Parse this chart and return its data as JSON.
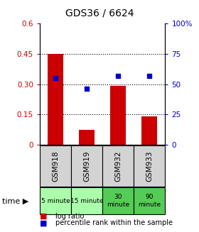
{
  "title": "GDS36 / 6624",
  "categories": [
    "GSM918",
    "GSM919",
    "GSM932",
    "GSM933"
  ],
  "time_labels": [
    "5 minute",
    "15 minute",
    "30\nminute",
    "90\nminute"
  ],
  "time_bg_colors": [
    "#aaffaa",
    "#aaffaa",
    "#55cc55",
    "#55cc55"
  ],
  "bar_values": [
    0.45,
    0.075,
    0.29,
    0.14
  ],
  "scatter_values": [
    55,
    46,
    57,
    57
  ],
  "bar_color": "#cc0000",
  "scatter_color": "#0000cc",
  "left_ylim": [
    0,
    0.6
  ],
  "right_ylim": [
    0,
    100
  ],
  "left_yticks": [
    0,
    0.15,
    0.3,
    0.45,
    0.6
  ],
  "right_yticks": [
    0,
    25,
    50,
    75,
    100
  ],
  "left_yticklabels": [
    "0",
    "0.15",
    "0.30",
    "0.45",
    "0.6"
  ],
  "right_yticklabels": [
    "0",
    "25",
    "50",
    "75",
    "100%"
  ],
  "grid_values": [
    0.15,
    0.3,
    0.45
  ],
  "legend_items": [
    "log ratio",
    "percentile rank within the sample"
  ],
  "time_label": "time"
}
